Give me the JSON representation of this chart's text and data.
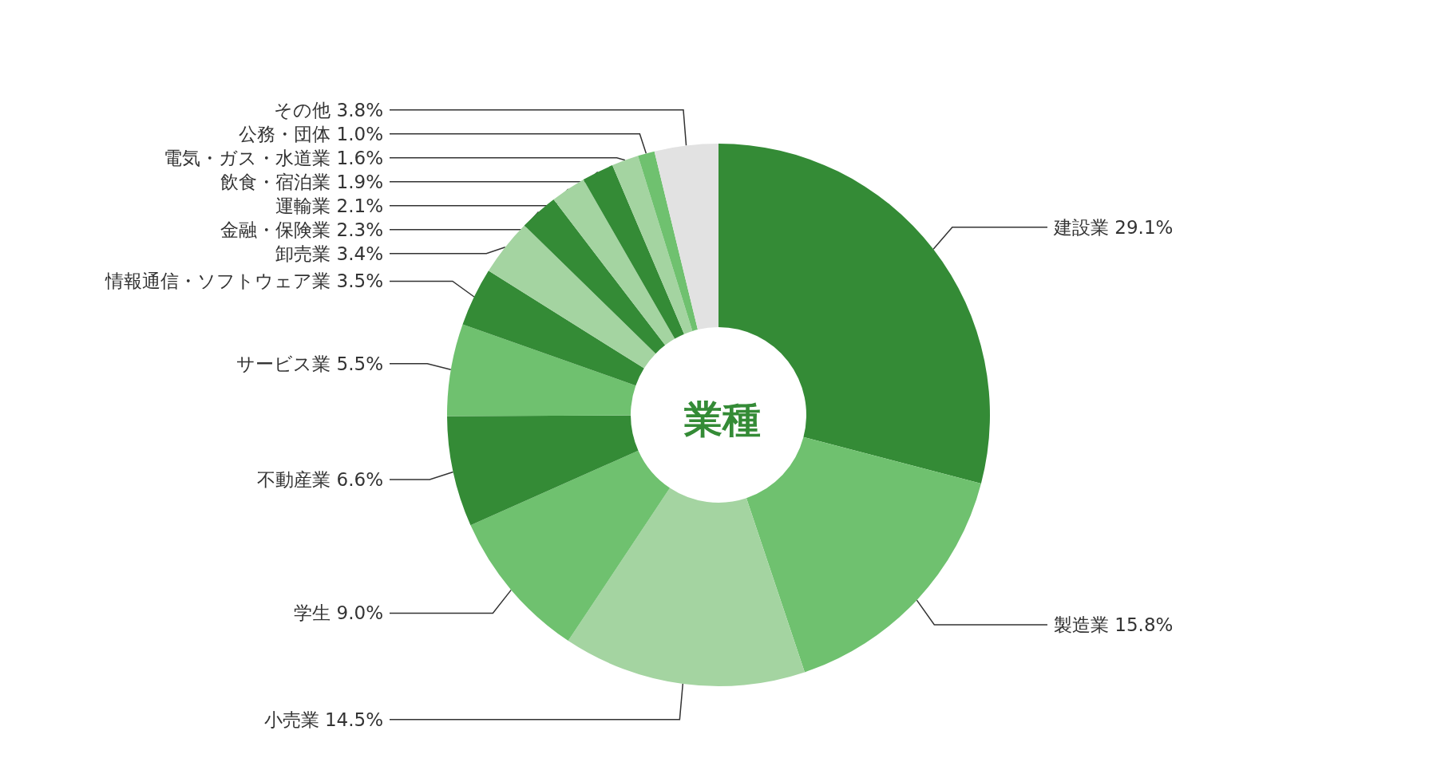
{
  "chart_data": {
    "type": "donut",
    "title": "業種",
    "categories": [
      "建設業",
      "製造業",
      "小売業",
      "学生",
      "不動産業",
      "サービス業",
      "情報通信・ソフトウェア業",
      "卸売業",
      "金融・保険業",
      "運輸業",
      "飲食・宿泊業",
      "電気・ガス・水道業",
      "公務・団体",
      "その他"
    ],
    "values": [
      29.1,
      15.8,
      14.5,
      9.0,
      6.6,
      5.5,
      3.5,
      3.4,
      2.3,
      2.1,
      1.9,
      1.6,
      1.0,
      3.8
    ],
    "colors": [
      "#348b36",
      "#6fc16f",
      "#a4d4a1",
      "#6fc16f",
      "#348b36",
      "#6fc16f",
      "#348b36",
      "#a4d4a1",
      "#348b36",
      "#a4d4a1",
      "#348b36",
      "#a4d4a1",
      "#6fc16f",
      "#e2e2e2"
    ],
    "value_labels": [
      "29.1%",
      "15.8%",
      "14.5%",
      "9.0%",
      "6.6%",
      "5.5%",
      "3.5%",
      "3.4%",
      "2.3%",
      "2.1%",
      "1.9%",
      "1.6%",
      "1.0%",
      "3.8%"
    ],
    "legend": false
  }
}
